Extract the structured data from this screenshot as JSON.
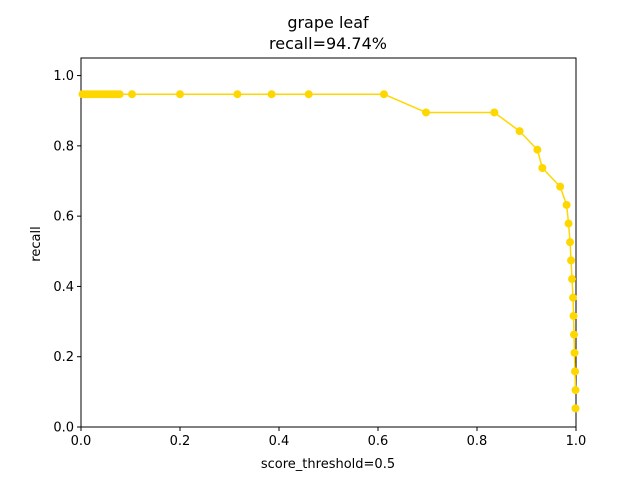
{
  "chart_data": {
    "type": "line",
    "title": "grape leaf",
    "subtitle": "recall=94.74%",
    "xlabel": "score_threshold=0.5",
    "ylabel": "recall",
    "xlim": [
      0.0,
      1.0
    ],
    "ylim": [
      0.0,
      1.05
    ],
    "x_ticks": [
      "0.0",
      "0.2",
      "0.4",
      "0.6",
      "0.8",
      "1.0"
    ],
    "y_ticks": [
      "0.0",
      "0.2",
      "0.4",
      "0.6",
      "0.8",
      "1.0"
    ],
    "grid": false,
    "line_color": "#FFD700",
    "series": [
      {
        "x": [
          0.003,
          0.008,
          0.013,
          0.018,
          0.023,
          0.028,
          0.033,
          0.038,
          0.043,
          0.048,
          0.053,
          0.058,
          0.063,
          0.068,
          0.073,
          0.078,
          0.103,
          0.2,
          0.316,
          0.385,
          0.46,
          0.612,
          0.697,
          0.835,
          0.886,
          0.922,
          0.932,
          0.968,
          0.981,
          0.985,
          0.988,
          0.99,
          0.992,
          0.994,
          0.995,
          0.996,
          0.997,
          0.998,
          0.999
        ],
        "y": [
          0.947,
          0.947,
          0.947,
          0.947,
          0.947,
          0.947,
          0.947,
          0.947,
          0.947,
          0.947,
          0.947,
          0.947,
          0.947,
          0.947,
          0.947,
          0.947,
          0.947,
          0.947,
          0.947,
          0.947,
          0.947,
          0.947,
          0.895,
          0.895,
          0.842,
          0.789,
          0.737,
          0.684,
          0.632,
          0.579,
          0.526,
          0.474,
          0.421,
          0.368,
          0.316,
          0.263,
          0.211,
          0.158,
          0.105
        ]
      }
    ],
    "extra_point": {
      "x": 0.999,
      "y": 0.053
    }
  }
}
